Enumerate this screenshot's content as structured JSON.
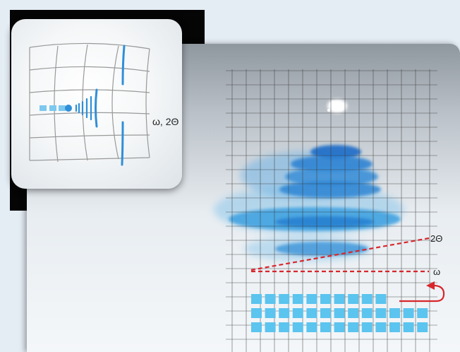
{
  "inset": {
    "label": "ω, 2Θ"
  },
  "main": {
    "two_theta_label": "2Θ",
    "omega_label": "ω"
  },
  "colors": {
    "detector_pixel": "#5bc4ef",
    "diffraction_blue": "#2f8fd8",
    "dashed_line": "#d8262c",
    "grid": "#222222"
  },
  "icons": {
    "rotation_arrow": "curved-arrow-icon"
  }
}
